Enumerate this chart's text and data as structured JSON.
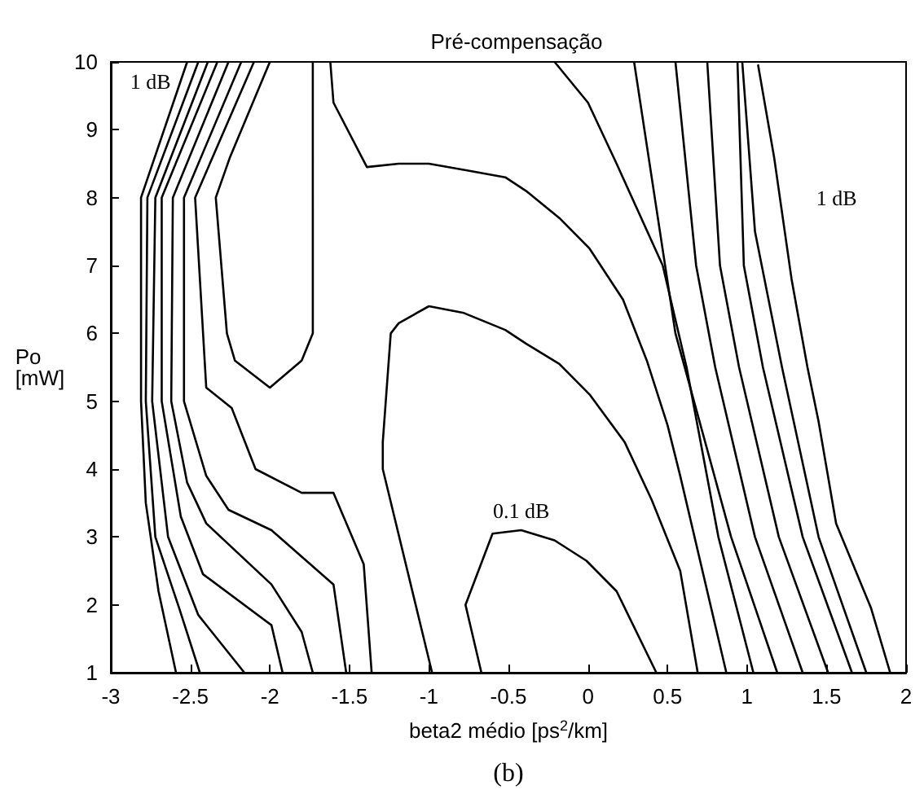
{
  "chart_data": {
    "type": "line",
    "title": "Pré-compensação",
    "xlabel": "beta2 médio [ps$^{2}$/km]",
    "ylabel": "Po\n[mW]",
    "xlim": [
      -3,
      2
    ],
    "xticks": [
      -3,
      -2.5,
      -2,
      -1.5,
      -1,
      -0.5,
      0,
      0.5,
      1,
      1.5,
      2
    ],
    "ylim": [
      1,
      10
    ],
    "yticks": [
      1,
      2,
      3,
      4,
      5,
      6,
      7,
      8,
      9,
      10
    ],
    "grid": false,
    "marker": "none",
    "line_style": "solid",
    "annotations": [
      {
        "text": "1 dB",
        "x": -2.52,
        "y": 10
      },
      {
        "text": "1 dB",
        "x": 1.21,
        "y": 8
      },
      {
        "text": "0.1 dB",
        "x": -0.42,
        "y": 3.1
      },
      "(b)"
    ],
    "series": [
      {
        "color": "#000000",
        "x": [
          -2.52,
          -2.81,
          -2.81,
          -2.78,
          -2.7,
          -2.59
        ],
        "values": [
          10,
          8,
          5,
          3.5,
          2.2,
          1
        ]
      },
      {
        "color": "#000000",
        "x": [
          -2.45,
          -2.77,
          -2.78,
          -2.72,
          -2.57,
          -2.44
        ],
        "values": [
          10,
          8,
          5,
          3,
          1.95,
          1
        ]
      },
      {
        "color": "#000000",
        "x": [
          -2.39,
          -2.72,
          -2.74,
          -2.64,
          -2.45,
          -2.16
        ],
        "values": [
          10,
          8,
          5,
          3,
          1.85,
          1
        ]
      },
      {
        "color": "#000000",
        "x": [
          -2.33,
          -2.68,
          -2.68,
          -2.56,
          -2.42,
          -1.99,
          -1.92
        ],
        "values": [
          10,
          8,
          5,
          3.3,
          2.45,
          1.7,
          1
        ]
      },
      {
        "color": "#000000",
        "x": [
          -2.26,
          -2.61,
          -2.62,
          -2.52,
          -2.4,
          -1.99,
          -1.8,
          -1.73
        ],
        "values": [
          10,
          8,
          5,
          3.8,
          3.2,
          2.3,
          1.6,
          1
        ]
      },
      {
        "color": "#000000",
        "x": [
          -2.18,
          -2.54,
          -2.54,
          -2.4,
          -2.26,
          -1.99,
          -1.6,
          -1.52
        ],
        "values": [
          10,
          8,
          5,
          3.9,
          3.4,
          3.1,
          2.3,
          1
        ]
      },
      {
        "color": "#000000",
        "x": [
          -2.1,
          -2.47,
          -2.4,
          -2.24,
          -2.09,
          -1.8,
          -1.6,
          -1.41,
          -1.36
        ],
        "values": [
          10,
          8,
          5.2,
          4.9,
          4,
          3.65,
          3.65,
          2.6,
          1
        ]
      },
      {
        "color": "#000000",
        "x": [
          -2,
          -2.25,
          -2.34,
          -2.27,
          -2.22,
          -2,
          -1.8,
          -1.73,
          -1.73
        ],
        "values": [
          10,
          8.6,
          8,
          6,
          5.6,
          5.2,
          5.6,
          6,
          10
        ]
      },
      {
        "color": "#000000",
        "x": [
          -1.62,
          -1.6,
          -1.39,
          -1.19,
          -1,
          -0.76,
          -0.52,
          -0.39,
          -0.18,
          0.01,
          0.22,
          0.37,
          0.5,
          0.58,
          0.87
        ],
        "values": [
          10,
          9.4,
          8.45,
          8.5,
          8.5,
          8.4,
          8.3,
          8.1,
          7.7,
          7.25,
          6.5,
          5.6,
          4.65,
          3.9,
          1
        ]
      },
      {
        "color": "#000000",
        "x": [
          -0.98,
          -1.29,
          -1.29,
          -1.24,
          -1.19,
          -1,
          -0.78,
          -0.52,
          -0.39,
          -0.18,
          0.01,
          0.23,
          0.4,
          0.58,
          0.69
        ],
        "values": [
          1,
          4,
          4.4,
          6,
          6.15,
          6.4,
          6.3,
          6.05,
          5.85,
          5.55,
          5.1,
          4.4,
          3.55,
          2.5,
          1
        ]
      },
      {
        "color": "#000000",
        "x": [
          -0.67,
          -0.77,
          -0.6,
          -0.42,
          -0.21,
          -0.01,
          0.18,
          0.43
        ],
        "values": [
          1,
          2,
          3.05,
          3.1,
          2.95,
          2.65,
          2.2,
          1
        ]
      },
      {
        "color": "#000000",
        "x": [
          -0.21,
          0,
          0.18,
          0.47,
          0.62,
          0.82,
          1.04
        ],
        "values": [
          10,
          9.4,
          8.5,
          7,
          5.5,
          3,
          1
        ]
      },
      {
        "color": "#000000",
        "x": [
          0.29,
          0.55,
          0.9,
          1.19
        ],
        "values": [
          10,
          6,
          3,
          1
        ]
      },
      {
        "color": "#000000",
        "x": [
          0.55,
          0.68,
          0.8,
          1.05,
          1.35
        ],
        "values": [
          10,
          7,
          5.5,
          3,
          1
        ]
      },
      {
        "color": "#000000",
        "x": [
          0.75,
          0.83,
          0.95,
          1.2,
          1.51
        ],
        "values": [
          10,
          7,
          5.5,
          3,
          1
        ]
      },
      {
        "color": "#000000",
        "x": [
          0.94,
          0.98,
          1.1,
          1.35,
          1.66
        ],
        "values": [
          10,
          7,
          5.5,
          3,
          1
        ]
      },
      {
        "color": "#000000",
        "x": [
          0.97,
          1.05,
          1.22,
          1.45,
          1.75
        ],
        "values": [
          10,
          7.5,
          5.5,
          3,
          1
        ]
      },
      {
        "color": "#000000",
        "x": [
          1.07,
          1.17,
          1.28,
          1.38,
          1.45,
          1.56,
          1.78,
          1.9
        ],
        "values": [
          9.95,
          8.6,
          6.8,
          5.5,
          4.7,
          3.2,
          1.95,
          1
        ]
      }
    ]
  }
}
